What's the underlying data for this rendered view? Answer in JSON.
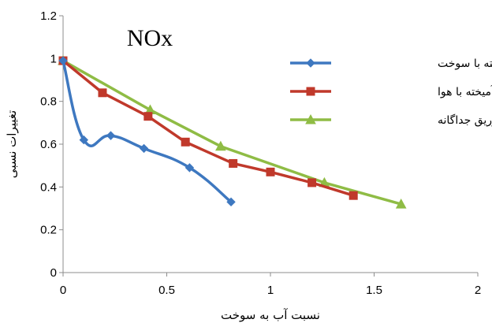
{
  "chart_data": {
    "type": "line",
    "title": "NOx",
    "xlabel": "نسبت آب به سوخت",
    "ylabel": "تغییرات نسبی",
    "xlim": [
      0,
      2
    ],
    "ylim": [
      0,
      1.2
    ],
    "xticks": [
      "0",
      "0.5",
      "1",
      "1.5",
      "2"
    ],
    "yticks": [
      "0",
      "0.2",
      "0.4",
      "0.6",
      "0.8",
      "1",
      "1.2"
    ],
    "grid": false,
    "legend_position": "top-right",
    "series": [
      {
        "name": "پیش آمیخته با سوخت",
        "color": "#3e78c0",
        "marker": "diamond",
        "smooth": true,
        "x": [
          0,
          0.1,
          0.23,
          0.39,
          0.61,
          0.81
        ],
        "y": [
          0.99,
          0.62,
          0.64,
          0.58,
          0.49,
          0.33
        ]
      },
      {
        "name": "پیش آمیخته با هوا",
        "color": "#c0392b",
        "marker": "square",
        "smooth": false,
        "x": [
          0,
          0.19,
          0.41,
          0.59,
          0.82,
          1.0,
          1.2,
          1.4
        ],
        "y": [
          0.99,
          0.84,
          0.73,
          0.61,
          0.51,
          0.47,
          0.42,
          0.36
        ]
      },
      {
        "name": "تزریق جداگانه",
        "color": "#8fbc45",
        "marker": "triangle",
        "smooth": false,
        "x": [
          0,
          0.42,
          0.76,
          1.26,
          1.63
        ],
        "y": [
          0.99,
          0.76,
          0.59,
          0.42,
          0.32
        ]
      }
    ]
  }
}
